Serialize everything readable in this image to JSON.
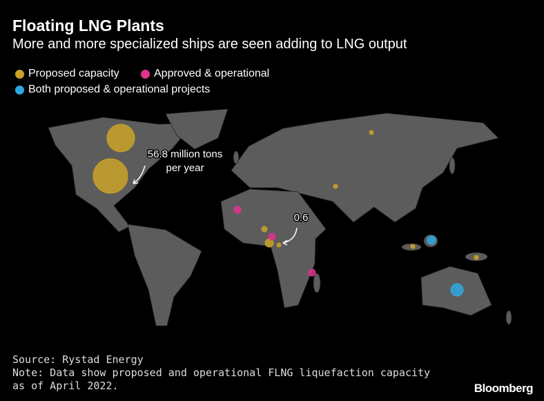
{
  "header": {
    "title": "Floating LNG Plants",
    "subtitle": "More and more specialized ships are seen adding to LNG output"
  },
  "legend": [
    {
      "name": "Proposed capacity",
      "color": "#c9a227"
    },
    {
      "name": "Approved & operational",
      "color": "#e0338e"
    },
    {
      "name": "Both proposed & operational projects",
      "color": "#2ea8e0"
    }
  ],
  "annotations": [
    {
      "lines": [
        "56.8 million tons",
        "per year"
      ]
    },
    {
      "lines": [
        "0.6"
      ]
    }
  ],
  "footer": {
    "source": "Source: Rystad Energy",
    "note": "Note: Data show proposed and operational FLNG liquefaction capacity as of April 2022.",
    "brand": "Bloomberg"
  }
}
